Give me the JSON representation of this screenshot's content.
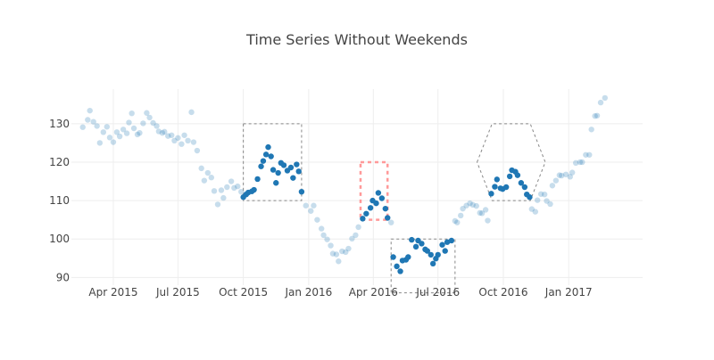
{
  "chart_data": {
    "type": "scatter",
    "title": "Time Series Without Weekends",
    "xlabel": "",
    "ylabel": "",
    "x_range": [
      "2015-02-01",
      "2017-04-15"
    ],
    "ylim": [
      88,
      139
    ],
    "x_tick_labels": [
      {
        "date": "2015-04-01",
        "label": "Apr 2015"
      },
      {
        "date": "2015-07-01",
        "label": "Jul 2015"
      },
      {
        "date": "2015-10-01",
        "label": "Oct 2015"
      },
      {
        "date": "2016-01-01",
        "label": "Jan 2016"
      },
      {
        "date": "2016-04-01",
        "label": "Apr 2016"
      },
      {
        "date": "2016-07-01",
        "label": "Jul 2016"
      },
      {
        "date": "2016-10-01",
        "label": "Oct 2016"
      },
      {
        "date": "2017-01-01",
        "label": "Jan 2017"
      }
    ],
    "y_ticks": [
      90,
      100,
      110,
      120,
      130
    ],
    "grid": true,
    "marker_color": "#1f77b4",
    "series": [
      {
        "values_selected_opacity": 1.0,
        "values_unselected_opacity": 0.25,
        "points": [
          [
            "2015-02-17",
            129.1,
            false
          ],
          [
            "2015-02-24",
            131.0,
            false
          ],
          [
            "2015-02-27",
            133.4,
            false
          ],
          [
            "2015-03-04",
            130.5,
            false
          ],
          [
            "2015-03-09",
            129.4,
            false
          ],
          [
            "2015-03-13",
            125.0,
            false
          ],
          [
            "2015-03-18",
            127.8,
            false
          ],
          [
            "2015-03-23",
            129.2,
            false
          ],
          [
            "2015-03-27",
            126.4,
            false
          ],
          [
            "2015-04-01",
            125.2,
            false
          ],
          [
            "2015-04-06",
            127.8,
            false
          ],
          [
            "2015-04-10",
            126.7,
            false
          ],
          [
            "2015-04-15",
            128.5,
            false
          ],
          [
            "2015-04-20",
            127.5,
            false
          ],
          [
            "2015-04-23",
            130.3,
            false
          ],
          [
            "2015-04-27",
            132.7,
            false
          ],
          [
            "2015-04-30",
            128.8,
            false
          ],
          [
            "2015-05-05",
            127.2,
            false
          ],
          [
            "2015-05-08",
            127.6,
            false
          ],
          [
            "2015-05-13",
            130.1,
            false
          ],
          [
            "2015-05-18",
            132.8,
            false
          ],
          [
            "2015-05-22",
            131.6,
            false
          ],
          [
            "2015-05-27",
            130.2,
            false
          ],
          [
            "2015-06-01",
            129.4,
            false
          ],
          [
            "2015-06-04",
            128.0,
            false
          ],
          [
            "2015-06-09",
            127.6,
            false
          ],
          [
            "2015-06-12",
            127.9,
            false
          ],
          [
            "2015-06-17",
            126.8,
            false
          ],
          [
            "2015-06-22",
            127.0,
            false
          ],
          [
            "2015-06-26",
            125.6,
            false
          ],
          [
            "2015-07-01",
            126.3,
            false
          ],
          [
            "2015-07-06",
            124.7,
            false
          ],
          [
            "2015-07-10",
            127.0,
            false
          ],
          [
            "2015-07-15",
            125.6,
            false
          ],
          [
            "2015-07-20",
            133.0,
            false
          ],
          [
            "2015-07-23",
            125.2,
            false
          ],
          [
            "2015-07-28",
            123.0,
            false
          ],
          [
            "2015-08-03",
            118.4,
            false
          ],
          [
            "2015-08-07",
            115.2,
            false
          ],
          [
            "2015-08-12",
            117.2,
            false
          ],
          [
            "2015-08-17",
            116.0,
            false
          ],
          [
            "2015-08-21",
            112.5,
            false
          ],
          [
            "2015-08-26",
            109.0,
            false
          ],
          [
            "2015-08-31",
            112.7,
            false
          ],
          [
            "2015-09-03",
            110.7,
            false
          ],
          [
            "2015-09-08",
            113.5,
            false
          ],
          [
            "2015-09-14",
            115.0,
            false
          ],
          [
            "2015-09-18",
            113.3,
            false
          ],
          [
            "2015-09-23",
            113.7,
            false
          ],
          [
            "2015-09-28",
            112.3,
            false
          ],
          [
            "2015-10-01",
            110.9,
            true
          ],
          [
            "2015-10-05",
            111.6,
            true
          ],
          [
            "2015-10-08",
            112.1,
            true
          ],
          [
            "2015-10-13",
            112.4,
            true
          ],
          [
            "2015-10-16",
            112.8,
            true
          ],
          [
            "2015-10-21",
            115.6,
            true
          ],
          [
            "2015-10-26",
            118.9,
            true
          ],
          [
            "2015-10-29",
            120.3,
            true
          ],
          [
            "2015-11-02",
            122.0,
            true
          ],
          [
            "2015-11-05",
            123.9,
            true
          ],
          [
            "2015-11-09",
            121.5,
            true
          ],
          [
            "2015-11-12",
            118.0,
            true
          ],
          [
            "2015-11-16",
            114.6,
            true
          ],
          [
            "2015-11-19",
            117.2,
            true
          ],
          [
            "2015-11-23",
            119.8,
            true
          ],
          [
            "2015-11-27",
            119.2,
            true
          ],
          [
            "2015-12-02",
            117.8,
            true
          ],
          [
            "2015-12-07",
            118.6,
            true
          ],
          [
            "2015-12-10",
            115.9,
            true
          ],
          [
            "2015-12-15",
            119.4,
            true
          ],
          [
            "2015-12-18",
            117.6,
            true
          ],
          [
            "2015-12-22",
            112.3,
            true
          ],
          [
            "2015-12-28",
            108.7,
            false
          ],
          [
            "2016-01-04",
            107.3,
            false
          ],
          [
            "2016-01-08",
            108.7,
            false
          ],
          [
            "2016-01-13",
            105.0,
            false
          ],
          [
            "2016-01-19",
            102.7,
            false
          ],
          [
            "2016-01-22",
            101.0,
            false
          ],
          [
            "2016-01-27",
            99.9,
            false
          ],
          [
            "2016-02-01",
            98.3,
            false
          ],
          [
            "2016-02-04",
            96.2,
            false
          ],
          [
            "2016-02-09",
            96.0,
            false
          ],
          [
            "2016-02-12",
            94.2,
            false
          ],
          [
            "2016-02-17",
            96.8,
            false
          ],
          [
            "2016-02-22",
            96.6,
            false
          ],
          [
            "2016-02-26",
            97.5,
            false
          ],
          [
            "2016-03-02",
            100.1,
            false
          ],
          [
            "2016-03-07",
            101.0,
            false
          ],
          [
            "2016-03-11",
            103.1,
            false
          ],
          [
            "2016-03-17",
            105.3,
            true
          ],
          [
            "2016-03-22",
            106.6,
            true
          ],
          [
            "2016-03-28",
            108.1,
            true
          ],
          [
            "2016-03-31",
            110.0,
            true
          ],
          [
            "2016-04-05",
            109.3,
            true
          ],
          [
            "2016-04-08",
            112.0,
            true
          ],
          [
            "2016-04-13",
            110.6,
            true
          ],
          [
            "2016-04-18",
            107.9,
            true
          ],
          [
            "2016-04-21",
            105.5,
            true
          ],
          [
            "2016-04-26",
            104.3,
            false
          ],
          [
            "2016-04-29",
            95.3,
            true
          ],
          [
            "2016-05-04",
            92.9,
            true
          ],
          [
            "2016-05-09",
            91.6,
            true
          ],
          [
            "2016-05-12",
            94.4,
            true
          ],
          [
            "2016-05-17",
            94.6,
            true
          ],
          [
            "2016-05-20",
            95.3,
            true
          ],
          [
            "2016-05-25",
            99.8,
            true
          ],
          [
            "2016-05-31",
            98.0,
            true
          ],
          [
            "2016-06-03",
            99.6,
            true
          ],
          [
            "2016-06-08",
            98.8,
            true
          ],
          [
            "2016-06-13",
            97.3,
            true
          ],
          [
            "2016-06-16",
            96.9,
            true
          ],
          [
            "2016-06-21",
            95.9,
            true
          ],
          [
            "2016-06-24",
            93.6,
            true
          ],
          [
            "2016-06-28",
            94.9,
            true
          ],
          [
            "2016-07-01",
            95.9,
            true
          ],
          [
            "2016-07-07",
            98.5,
            true
          ],
          [
            "2016-07-11",
            96.9,
            true
          ],
          [
            "2016-07-14",
            99.2,
            true
          ],
          [
            "2016-07-20",
            99.6,
            true
          ],
          [
            "2016-07-25",
            104.7,
            false
          ],
          [
            "2016-07-28",
            104.3,
            false
          ],
          [
            "2016-08-02",
            106.1,
            false
          ],
          [
            "2016-08-05",
            107.9,
            false
          ],
          [
            "2016-08-10",
            108.7,
            false
          ],
          [
            "2016-08-15",
            109.3,
            false
          ],
          [
            "2016-08-19",
            108.9,
            false
          ],
          [
            "2016-08-24",
            108.6,
            false
          ],
          [
            "2016-08-29",
            106.8,
            false
          ],
          [
            "2016-09-01",
            106.7,
            false
          ],
          [
            "2016-09-06",
            107.6,
            false
          ],
          [
            "2016-09-09",
            104.8,
            false
          ],
          [
            "2016-09-14",
            111.8,
            true
          ],
          [
            "2016-09-19",
            113.6,
            true
          ],
          [
            "2016-09-22",
            115.5,
            true
          ],
          [
            "2016-09-27",
            113.2,
            true
          ],
          [
            "2016-09-30",
            113.0,
            true
          ],
          [
            "2016-10-05",
            113.5,
            true
          ],
          [
            "2016-10-10",
            116.3,
            true
          ],
          [
            "2016-10-13",
            117.9,
            true
          ],
          [
            "2016-10-18",
            117.5,
            true
          ],
          [
            "2016-10-21",
            116.6,
            true
          ],
          [
            "2016-10-26",
            114.6,
            true
          ],
          [
            "2016-10-31",
            113.5,
            true
          ],
          [
            "2016-11-03",
            111.6,
            true
          ],
          [
            "2016-11-07",
            110.9,
            true
          ],
          [
            "2016-11-10",
            107.8,
            false
          ],
          [
            "2016-11-15",
            107.1,
            false
          ],
          [
            "2016-11-18",
            110.1,
            false
          ],
          [
            "2016-11-23",
            111.7,
            false
          ],
          [
            "2016-11-28",
            111.6,
            false
          ],
          [
            "2016-12-01",
            109.9,
            false
          ],
          [
            "2016-12-06",
            109.1,
            false
          ],
          [
            "2016-12-09",
            113.9,
            false
          ],
          [
            "2016-12-14",
            115.2,
            false
          ],
          [
            "2016-12-19",
            116.6,
            false
          ],
          [
            "2016-12-22",
            116.5,
            false
          ],
          [
            "2016-12-28",
            116.8,
            false
          ],
          [
            "2017-01-03",
            116.2,
            false
          ],
          [
            "2017-01-06",
            117.3,
            false
          ],
          [
            "2017-01-11",
            119.8,
            false
          ],
          [
            "2017-01-17",
            120.0,
            false
          ],
          [
            "2017-01-20",
            120.0,
            false
          ],
          [
            "2017-01-25",
            121.9,
            false
          ],
          [
            "2017-01-30",
            121.9,
            false
          ],
          [
            "2017-02-02",
            128.5,
            false
          ],
          [
            "2017-02-07",
            132.0,
            false
          ],
          [
            "2017-02-10",
            132.1,
            false
          ],
          [
            "2017-02-15",
            135.5,
            false
          ],
          [
            "2017-02-21",
            136.7,
            false
          ]
        ]
      }
    ],
    "selections": [
      {
        "shape": "rect",
        "x0": "2015-10-01",
        "x1": "2015-12-22",
        "y0": 110,
        "y1": 130,
        "line_color": "#888888",
        "line_style": "dashed"
      },
      {
        "shape": "rect",
        "x0": "2016-03-14",
        "x1": "2016-04-21",
        "y0": 105,
        "y1": 120,
        "line_color": "#ff9999",
        "line_style": "dashed"
      },
      {
        "shape": "rect",
        "x0": "2016-04-26",
        "x1": "2016-07-25",
        "y0": 86,
        "y1": 100,
        "line_color": "#888888",
        "line_style": "dashed"
      },
      {
        "shape": "hexagon",
        "x0": "2016-08-25",
        "x1": "2016-11-29",
        "y0": 110,
        "y1": 130,
        "line_color": "#888888",
        "line_style": "dashed"
      }
    ]
  }
}
